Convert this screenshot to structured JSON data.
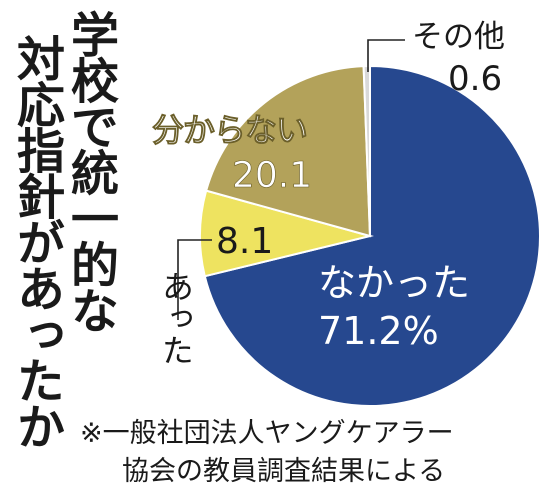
{
  "title": [
    "学校で統一的な",
    "対応指針があったか"
  ],
  "note": [
    "※一般社団法人ヤングケアラー",
    "協会の教員調査結果による"
  ],
  "chart_data": {
    "type": "pie",
    "title": "学校で統一的な対応指針があったか",
    "slices": [
      {
        "label": "なかった",
        "value": 71.2,
        "value_text": "71.2%",
        "color": "#26488f"
      },
      {
        "label": "あった",
        "value": 8.1,
        "value_text": "8.1",
        "color": "#eee360"
      },
      {
        "label": "分からない",
        "value": 20.1,
        "value_text": "20.1",
        "color": "#b3a25a"
      },
      {
        "label": "その他",
        "value": 0.6,
        "value_text": "0.6",
        "color": "#d9d9d9"
      }
    ]
  }
}
